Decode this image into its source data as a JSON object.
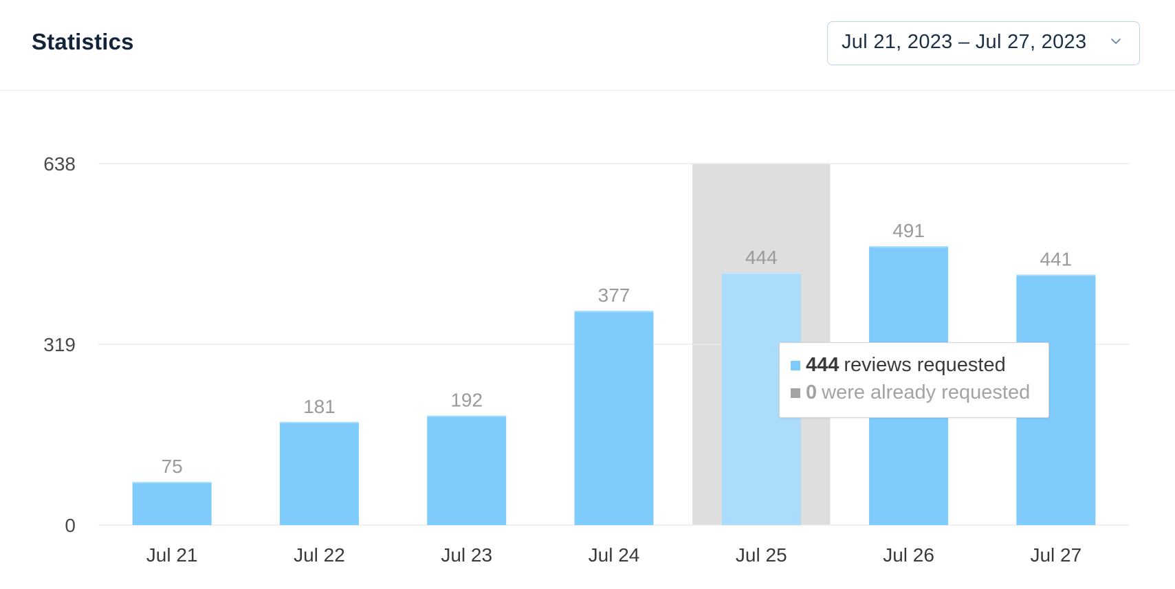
{
  "header": {
    "title": "Statistics",
    "date_range": "Jul 21, 2023 – Jul 27, 2023"
  },
  "colors": {
    "bar": "#7ecbfc",
    "bar_highlight": "#acdcfb",
    "highlight_band": "#dedede",
    "already_requested": "#a3a3a3",
    "gridline": "#ececec"
  },
  "chart_data": {
    "type": "bar",
    "categories": [
      "Jul 21",
      "Jul 22",
      "Jul 23",
      "Jul 24",
      "Jul 25",
      "Jul 26",
      "Jul 27"
    ],
    "series": [
      {
        "values": [
          75,
          181,
          192,
          377,
          444,
          491,
          441
        ]
      }
    ],
    "data_labels": [
      "75",
      "181",
      "192",
      "377",
      "444",
      "491",
      "441"
    ],
    "y_ticks": [
      "638",
      "319",
      "0"
    ],
    "ylim": [
      0,
      638
    ],
    "grid": true,
    "highlighted_category": "Jul 25"
  },
  "tooltip": {
    "reviews_value": "444",
    "reviews_text": "reviews requested",
    "already_value": "0",
    "already_text": "were already requested"
  }
}
